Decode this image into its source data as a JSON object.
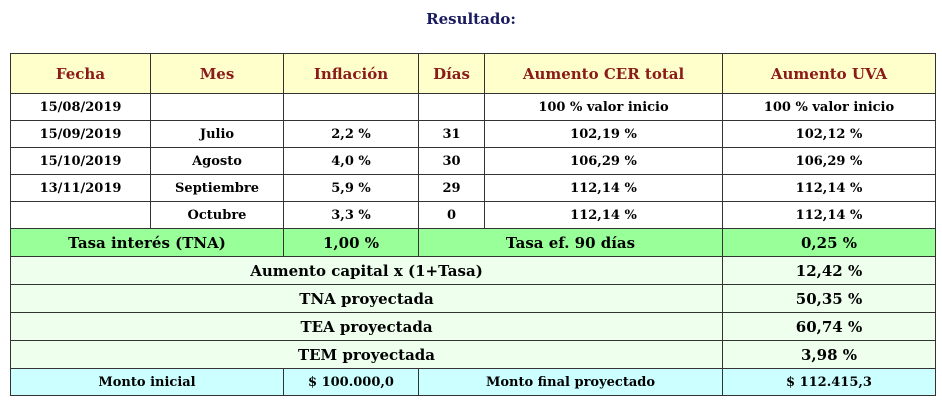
{
  "title": "Resultado:",
  "headers": [
    "Fecha",
    "Mes",
    "Inflación",
    "Días",
    "Aumento CER total",
    "Aumento UVA"
  ],
  "rows": [
    {
      "fecha": "15/08/2019",
      "mes": "",
      "inflacion": "",
      "dias": "",
      "cer": "100 % valor inicio",
      "uva": "100 % valor inicio"
    },
    {
      "fecha": "15/09/2019",
      "mes": "Julio",
      "inflacion": "2,2 %",
      "dias": "31",
      "cer": "102,19 %",
      "uva": "102,12 %"
    },
    {
      "fecha": "15/10/2019",
      "mes": "Agosto",
      "inflacion": "4,0 %",
      "dias": "30",
      "cer": "106,29 %",
      "uva": "106,29 %"
    },
    {
      "fecha": "13/11/2019",
      "mes": "Septiembre",
      "inflacion": "5,9 %",
      "dias": "29",
      "cer": "112,14 %",
      "uva": "112,14 %"
    },
    {
      "fecha": "",
      "mes": "Octubre",
      "inflacion": "3,3 %",
      "dias": "0",
      "cer": "112,14 %",
      "uva": "112,14 %"
    }
  ],
  "tna": {
    "label": "Tasa interés (TNA)",
    "value": "1,00 %",
    "ef_label": "Tasa ef. 90 días",
    "ef_value": "0,25 %"
  },
  "summary": [
    {
      "label": "Aumento capital x (1+Tasa)",
      "value": "12,42 %"
    },
    {
      "label": "TNA proyectada",
      "value": "50,35 %"
    },
    {
      "label": "TEA proyectada",
      "value": "60,74 %"
    },
    {
      "label": "TEM proyectada",
      "value": "3,98 %"
    }
  ],
  "monto": {
    "initial_label": "Monto inicial",
    "initial_value": "$ 100.000,0",
    "final_label": "Monto final proyectado",
    "final_value": "$ 112.415,3"
  }
}
